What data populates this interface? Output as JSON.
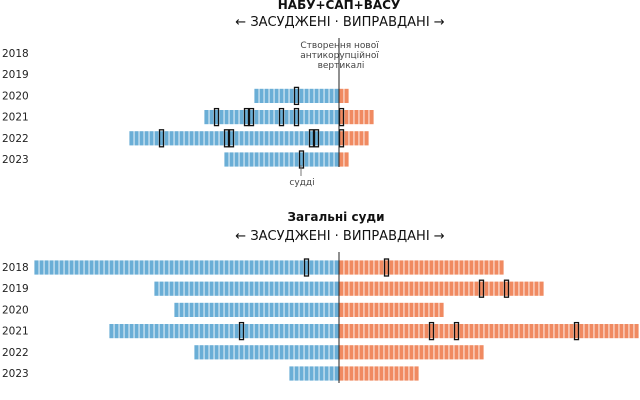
{
  "legend": {
    "text": "← ЗАСУДЖЕНІ · ВИПРАВДАНІ →"
  },
  "colors": {
    "convicted": "#6aaed6",
    "acquitted": "#f08a61",
    "axis": "#222222",
    "judge_outline": "#111111"
  },
  "annotations": {
    "vertical_line_lines": [
      "Створення нової",
      "антикорупційної",
      "вертикалі"
    ],
    "judges_label": "судді"
  },
  "chart_data": [
    {
      "type": "bar",
      "title": "НАБУ+САП+ВАСУ",
      "categories": [
        "2018",
        "2019",
        "2020",
        "2021",
        "2022",
        "2023"
      ],
      "series": [
        {
          "key": "convicted",
          "values": [
            0,
            0,
            17,
            27,
            42,
            23
          ]
        },
        {
          "key": "acquitted",
          "values": [
            0,
            0,
            2,
            7,
            6,
            2
          ]
        }
      ],
      "judge_markers": [
        {
          "year": "2020",
          "side": "convicted",
          "index": 8
        },
        {
          "year": "2021",
          "side": "convicted",
          "index": 24
        },
        {
          "year": "2021",
          "side": "convicted",
          "index": 18
        },
        {
          "year": "2021",
          "side": "convicted",
          "index": 17
        },
        {
          "year": "2021",
          "side": "convicted",
          "index": 11
        },
        {
          "year": "2021",
          "side": "convicted",
          "index": 8
        },
        {
          "year": "2022",
          "side": "convicted",
          "index": 35
        },
        {
          "year": "2022",
          "side": "convicted",
          "index": 22
        },
        {
          "year": "2022",
          "side": "convicted",
          "index": 21
        },
        {
          "year": "2022",
          "side": "convicted",
          "index": 5
        },
        {
          "year": "2022",
          "side": "convicted",
          "index": 4
        },
        {
          "year": "2023",
          "side": "convicted",
          "index": 7
        },
        {
          "year": "2021",
          "side": "acquitted",
          "index": 0
        },
        {
          "year": "2022",
          "side": "acquitted",
          "index": 0
        }
      ]
    },
    {
      "type": "bar",
      "title": "Загальні суди",
      "categories": [
        "2018",
        "2019",
        "2020",
        "2021",
        "2022",
        "2023"
      ],
      "series": [
        {
          "key": "convicted",
          "values": [
            61,
            37,
            33,
            46,
            29,
            10
          ]
        },
        {
          "key": "acquitted",
          "values": [
            33,
            41,
            21,
            60,
            29,
            16
          ]
        }
      ],
      "judge_markers": [
        {
          "year": "2018",
          "side": "convicted",
          "index": 6
        },
        {
          "year": "2021",
          "side": "convicted",
          "index": 19
        },
        {
          "year": "2018",
          "side": "acquitted",
          "index": 9
        },
        {
          "year": "2019",
          "side": "acquitted",
          "index": 28
        },
        {
          "year": "2019",
          "side": "acquitted",
          "index": 33
        },
        {
          "year": "2021",
          "side": "acquitted",
          "index": 18
        },
        {
          "year": "2021",
          "side": "acquitted",
          "index": 23
        },
        {
          "year": "2021",
          "side": "acquitted",
          "index": 47
        }
      ]
    }
  ]
}
